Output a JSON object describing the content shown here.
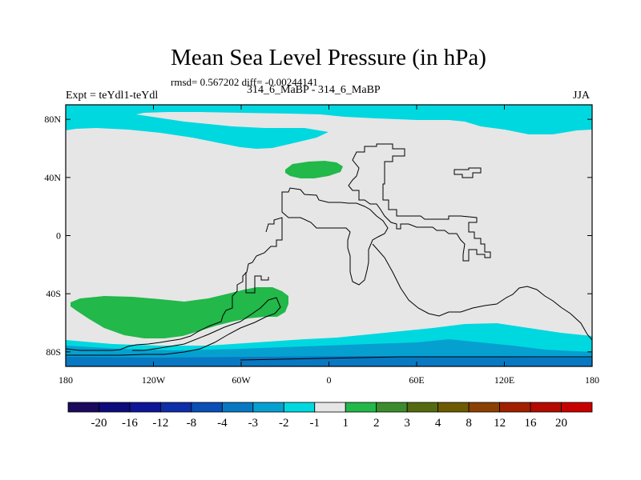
{
  "chart_data": {
    "type": "heatmap",
    "title": "Mean Sea Level Pressure (in hPa)",
    "stats": "rmsd= 0.567202 diff= -0.00244141",
    "left_label": "Expt = teYdl1-teYdl",
    "center_label": "314_6_MaBP - 314_6_MaBP",
    "right_label": "JJA",
    "x_ticks": [
      "180",
      "120W",
      "60W",
      "0",
      "60E",
      "120E",
      "180"
    ],
    "y_ticks": [
      "80N",
      "40N",
      "0",
      "40S",
      "80S"
    ],
    "xlim": [
      -180,
      180
    ],
    "ylim": [
      -90,
      90
    ],
    "colorbar": {
      "labels": [
        "-20",
        "-16",
        "-12",
        "-8",
        "-4",
        "-3",
        "-2",
        "-1",
        "1",
        "2",
        "3",
        "4",
        "8",
        "12",
        "16",
        "20"
      ],
      "colors": [
        "#1b0a5e",
        "#0c0c7c",
        "#0e1596",
        "#0d2ea8",
        "#0a4eb6",
        "#0878c2",
        "#06a0d0",
        "#00d8e0",
        "#e6e6e6",
        "#22b84a",
        "#3c8c2e",
        "#556a10",
        "#6e5a00",
        "#8a4000",
        "#a02000",
        "#b40a00",
        "#c80000"
      ]
    },
    "fields": {
      "background": "#e6e6e6",
      "positive_anomaly": "#22b84a",
      "neg_1_2": "#00d8e0",
      "neg_2_3": "#06a0d0",
      "neg_3_4": "#0878c2"
    }
  }
}
